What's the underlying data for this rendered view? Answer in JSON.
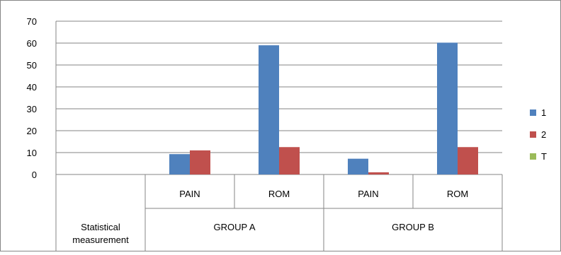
{
  "chart_data": {
    "type": "bar",
    "categories": [
      "",
      "PAIN",
      "ROM",
      "PAIN",
      "ROM"
    ],
    "category_groups": [
      "Statistical measurement",
      "GROUP A",
      "GROUP B"
    ],
    "series": [
      {
        "name": "1",
        "color": "#4f81bd",
        "values": [
          null,
          9.3,
          59.0,
          7.2,
          60.2
        ]
      },
      {
        "name": "2",
        "color": "#c0504d",
        "values": [
          null,
          11.0,
          12.5,
          1.0,
          12.5
        ]
      },
      {
        "name": "T",
        "color": "#9bbb59",
        "values": [
          null,
          null,
          null,
          null,
          null
        ]
      }
    ],
    "ylim": [
      0,
      70
    ],
    "yticks": [
      0,
      10,
      20,
      30,
      40,
      50,
      60,
      70
    ],
    "grid": true,
    "legend_position": "right",
    "title": "",
    "xlabel": "",
    "ylabel": ""
  }
}
